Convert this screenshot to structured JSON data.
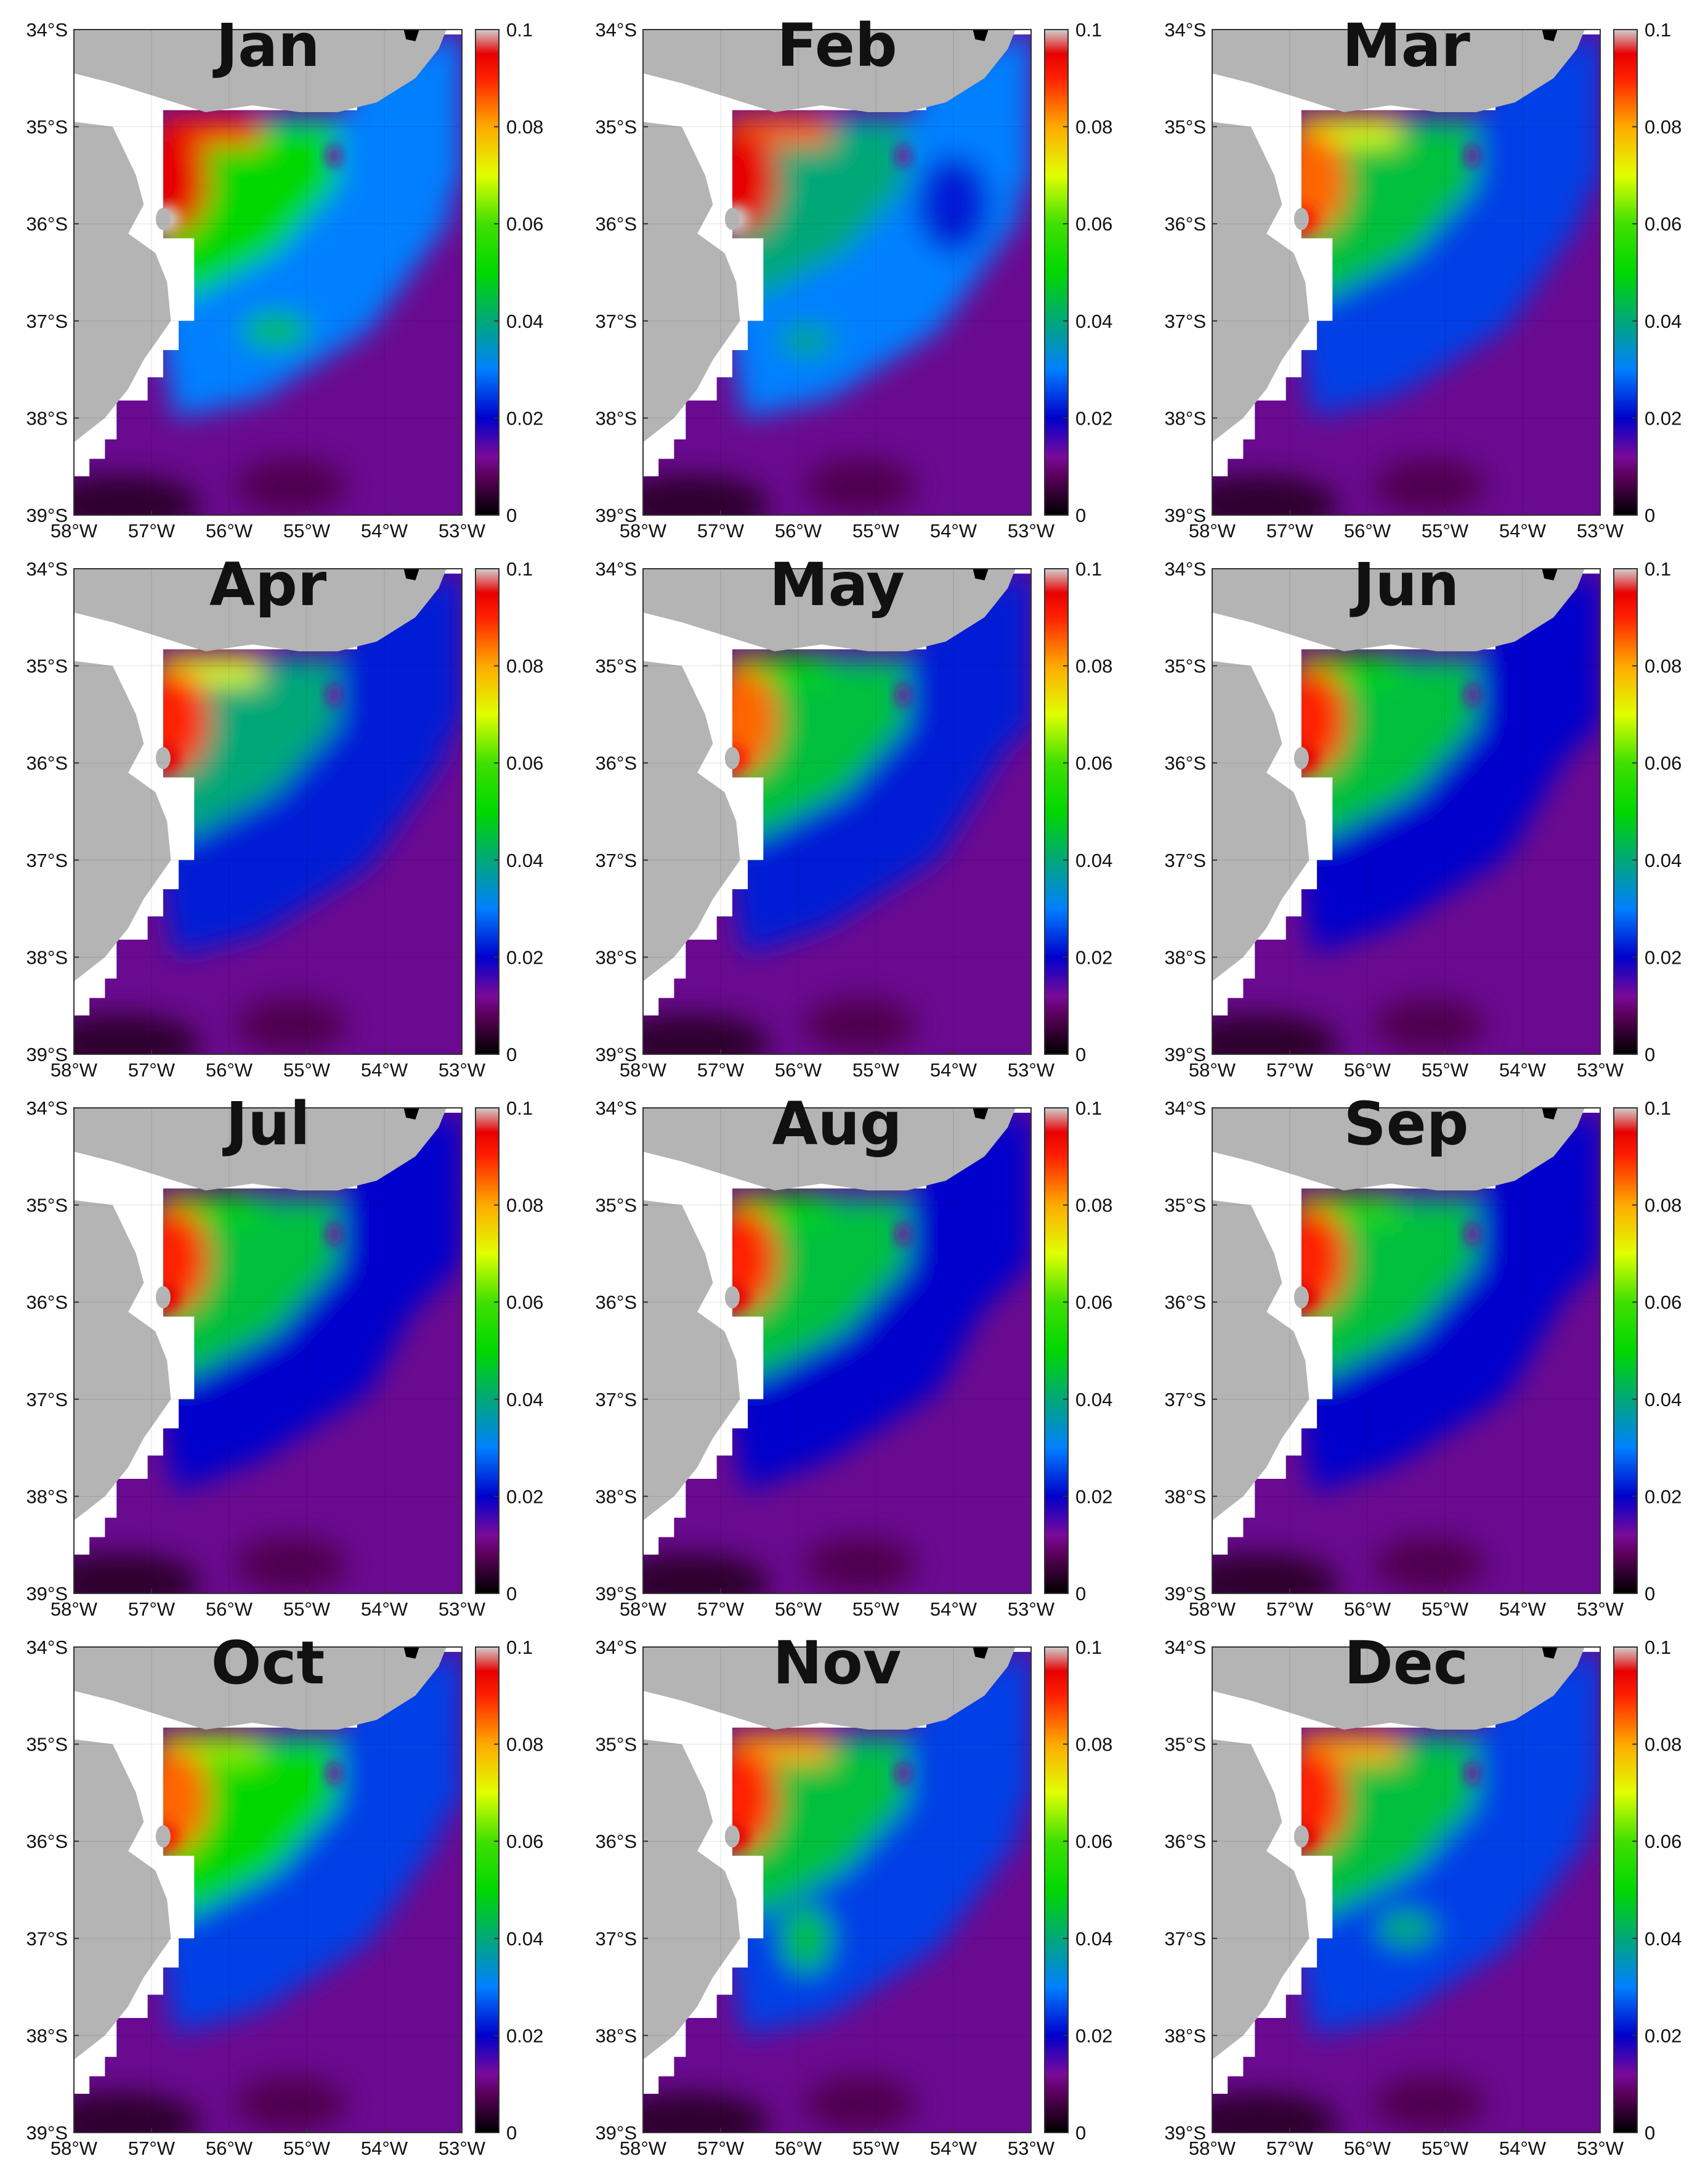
{
  "panels": [
    {
      "month": "Jan",
      "blobs": [
        {
          "lon": -55.4,
          "lat": -37.1,
          "level": 0.045,
          "rx": 55,
          "ry": 28
        }
      ]
    },
    {
      "month": "Feb",
      "blobs": [
        {
          "lon": -55.9,
          "lat": -37.2,
          "level": 0.04,
          "rx": 45,
          "ry": 25
        },
        {
          "lon": -54.0,
          "lat": -35.8,
          "level": 0.022,
          "rx": 60,
          "ry": 80
        }
      ]
    },
    {
      "month": "Mar",
      "blobs": []
    },
    {
      "month": "Apr",
      "blobs": []
    },
    {
      "month": "May",
      "blobs": []
    },
    {
      "month": "Jun",
      "blobs": []
    },
    {
      "month": "Jul",
      "blobs": []
    },
    {
      "month": "Aug",
      "blobs": []
    },
    {
      "month": "Sep",
      "blobs": []
    },
    {
      "month": "Oct",
      "blobs": []
    },
    {
      "month": "Nov",
      "blobs": [
        {
          "lon": -55.9,
          "lat": -37.0,
          "level": 0.045,
          "rx": 40,
          "ry": 55
        }
      ]
    },
    {
      "month": "Dec",
      "blobs": [
        {
          "lon": -55.5,
          "lat": -36.9,
          "level": 0.042,
          "rx": 45,
          "ry": 28
        }
      ]
    }
  ],
  "plume": [
    {
      "north": 0.09,
      "core": 0.095,
      "mid": 0.05,
      "edge": 0.03,
      "reach": 1.0
    },
    {
      "north": 0.085,
      "core": 0.095,
      "mid": 0.04,
      "edge": 0.03,
      "reach": 1.0
    },
    {
      "north": 0.07,
      "core": 0.085,
      "mid": 0.045,
      "edge": 0.025,
      "reach": 0.9
    },
    {
      "north": 0.07,
      "core": 0.09,
      "mid": 0.04,
      "edge": 0.022,
      "reach": 0.9
    },
    {
      "north": 0.05,
      "core": 0.085,
      "mid": 0.045,
      "edge": 0.022,
      "reach": 0.7
    },
    {
      "north": 0.05,
      "core": 0.09,
      "mid": 0.045,
      "edge": 0.02,
      "reach": 0.65
    },
    {
      "north": 0.05,
      "core": 0.09,
      "mid": 0.045,
      "edge": 0.02,
      "reach": 0.55
    },
    {
      "north": 0.05,
      "core": 0.09,
      "mid": 0.045,
      "edge": 0.02,
      "reach": 0.55
    },
    {
      "north": 0.055,
      "core": 0.09,
      "mid": 0.045,
      "edge": 0.02,
      "reach": 0.65
    },
    {
      "north": 0.065,
      "core": 0.085,
      "mid": 0.05,
      "edge": 0.025,
      "reach": 0.85
    },
    {
      "north": 0.08,
      "core": 0.09,
      "mid": 0.045,
      "edge": 0.025,
      "reach": 1.0
    },
    {
      "north": 0.08,
      "core": 0.09,
      "mid": 0.045,
      "edge": 0.025,
      "reach": 1.0
    }
  ],
  "axes": {
    "lon_ticks": [
      -58,
      -57,
      -56,
      -55,
      -54,
      -53
    ],
    "lon_labels": [
      "58°W",
      "57°W",
      "56°W",
      "55°W",
      "54°W",
      "53°W"
    ],
    "lat_ticks": [
      -34,
      -35,
      -36,
      -37,
      -38,
      -39
    ],
    "lat_labels": [
      "34°S",
      "35°S",
      "36°S",
      "37°S",
      "38°S",
      "39°S"
    ],
    "lon_range": [
      -58,
      -53
    ],
    "lat_range": [
      -39,
      -34
    ]
  },
  "colorbar": {
    "range": [
      0,
      0.1
    ],
    "ticks": [
      0,
      0.02,
      0.04,
      0.06,
      0.08,
      0.1
    ],
    "tick_labels": [
      "0",
      "0.02",
      "0.04",
      "0.06",
      "0.08",
      "0.1"
    ],
    "stops": [
      {
        "v": 0.0,
        "color": "#000000"
      },
      {
        "v": 0.008,
        "color": "#5a005a"
      },
      {
        "v": 0.012,
        "color": "#7a0a9a"
      },
      {
        "v": 0.02,
        "color": "#0000cc"
      },
      {
        "v": 0.03,
        "color": "#0080ff"
      },
      {
        "v": 0.04,
        "color": "#00a878"
      },
      {
        "v": 0.05,
        "color": "#00d800"
      },
      {
        "v": 0.06,
        "color": "#40e000"
      },
      {
        "v": 0.07,
        "color": "#e0ff00"
      },
      {
        "v": 0.08,
        "color": "#ffaa00"
      },
      {
        "v": 0.09,
        "color": "#ff2000"
      },
      {
        "v": 0.095,
        "color": "#e80000"
      },
      {
        "v": 0.1,
        "color": "#d0d0d0"
      }
    ]
  },
  "colors": {
    "land": "#b4b4b4",
    "white": "#ffffff",
    "ocean_base": "#6a0a90"
  },
  "grid_lines": true
}
